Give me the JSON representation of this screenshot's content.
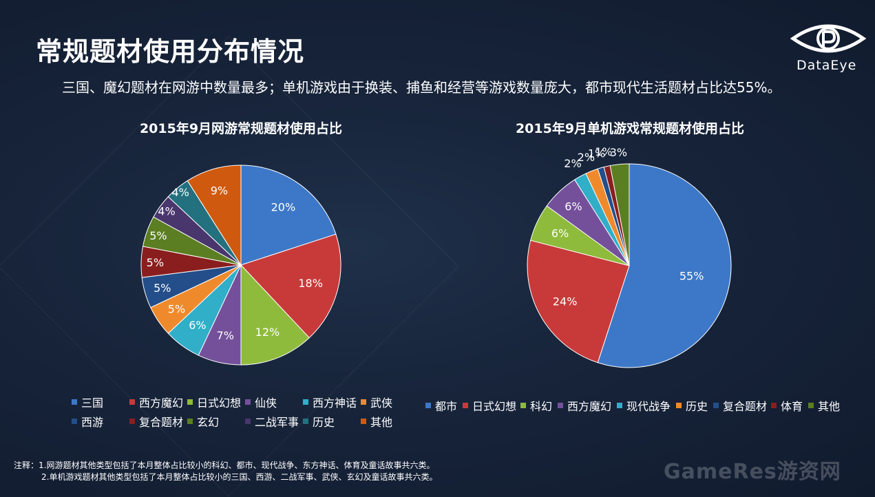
{
  "page": {
    "title": "常规题材使用分布情况",
    "subtitle": "三国、魔幻题材在网游中数量最多；单机游戏由于换装、捕鱼和经营等游戏数量庞大，都市现代生活题材占比达55%。",
    "logo_text": "DataEye",
    "footnote_prefix": "注释：",
    "footnote_1": "1.网游题材其他类型包括了本月整体占比较小的科幻、都市、现代战争、东方神话、体育及童话故事共六类。",
    "footnote_2": "2.单机游戏题材其他类型包括了本月整体占比较小的三国、西游、二战军事、武侠、玄幻及童话故事共六类。",
    "watermark": "GameRes游资网"
  },
  "chart_data": [
    {
      "type": "pie",
      "title": "2015年9月网游常规题材使用占比",
      "categories": [
        "三国",
        "西方魔幻",
        "日式幻想",
        "仙侠",
        "西方神话",
        "武侠",
        "西游",
        "复合题材",
        "玄幻",
        "二战军事",
        "历史",
        "其他"
      ],
      "values": [
        20,
        18,
        12,
        7,
        6,
        5,
        5,
        5,
        5,
        4,
        4,
        9
      ],
      "labels": [
        "20%",
        "18%",
        "12%",
        "7%",
        "6%",
        "5%",
        "5%",
        "5%",
        "5%",
        "4%",
        "4%",
        "9%"
      ],
      "colors": [
        "#3d78c8",
        "#c83a3a",
        "#8fbb3c",
        "#74509b",
        "#31aec8",
        "#ef8a2c",
        "#234e8a",
        "#8a1e1e",
        "#5b7e22",
        "#48366c",
        "#23707f",
        "#cf5a0f"
      ],
      "legend_placement": "bottom"
    },
    {
      "type": "pie",
      "title": "2015年9月单机游戏常规题材使用占比",
      "categories": [
        "都市",
        "日式幻想",
        "科幻",
        "西方魔幻",
        "现代战争",
        "历史",
        "复合题材",
        "体育",
        "其他"
      ],
      "values": [
        55,
        24,
        6,
        6,
        2,
        2,
        1,
        1,
        3
      ],
      "labels": [
        "55%",
        "24%",
        "6%",
        "6%",
        "2%",
        "2%",
        "1%",
        "1%",
        "3%"
      ],
      "colors": [
        "#3d78c8",
        "#c83a3a",
        "#8fbb3c",
        "#74509b",
        "#31aec8",
        "#ef8a2c",
        "#234e8a",
        "#8a1e1e",
        "#5b7e22"
      ],
      "legend_placement": "bottom"
    }
  ]
}
